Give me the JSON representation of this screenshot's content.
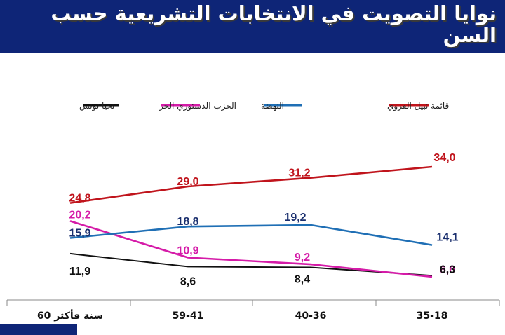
{
  "title": "نوايا التصويت في الانتخابات التشريعية حسب السن",
  "chart_data": {
    "type": "line",
    "categories": [
      "60 سنة فأكثر",
      "59-41",
      "40-36",
      "35-18"
    ],
    "series": [
      {
        "name": "قائمة نبيل القروي",
        "color": "#c0141c",
        "values": [
          24.8,
          29.0,
          31.2,
          34.0
        ],
        "labels": [
          "24,8",
          "29,0",
          "31,2",
          "34,0"
        ]
      },
      {
        "name": "النهضة",
        "color": "#1f6fb5",
        "values": [
          15.9,
          18.8,
          19.2,
          14.1
        ],
        "labels": [
          "15,9",
          "18,8",
          "19,2",
          "14,1"
        ]
      },
      {
        "name": "الحزب الدستوري الحر",
        "color": "#d51ba8",
        "values": [
          20.2,
          10.9,
          9.2,
          6.0
        ],
        "labels": [
          "20,2",
          "10,9",
          "9,2",
          "6,0"
        ]
      },
      {
        "name": "تحيا تونس",
        "color": "#111111",
        "values": [
          11.9,
          8.6,
          8.4,
          6.3
        ],
        "labels": [
          "11,9",
          "8,6",
          "8,4",
          "6,3"
        ]
      }
    ],
    "legend": "top-right",
    "grid": false
  }
}
